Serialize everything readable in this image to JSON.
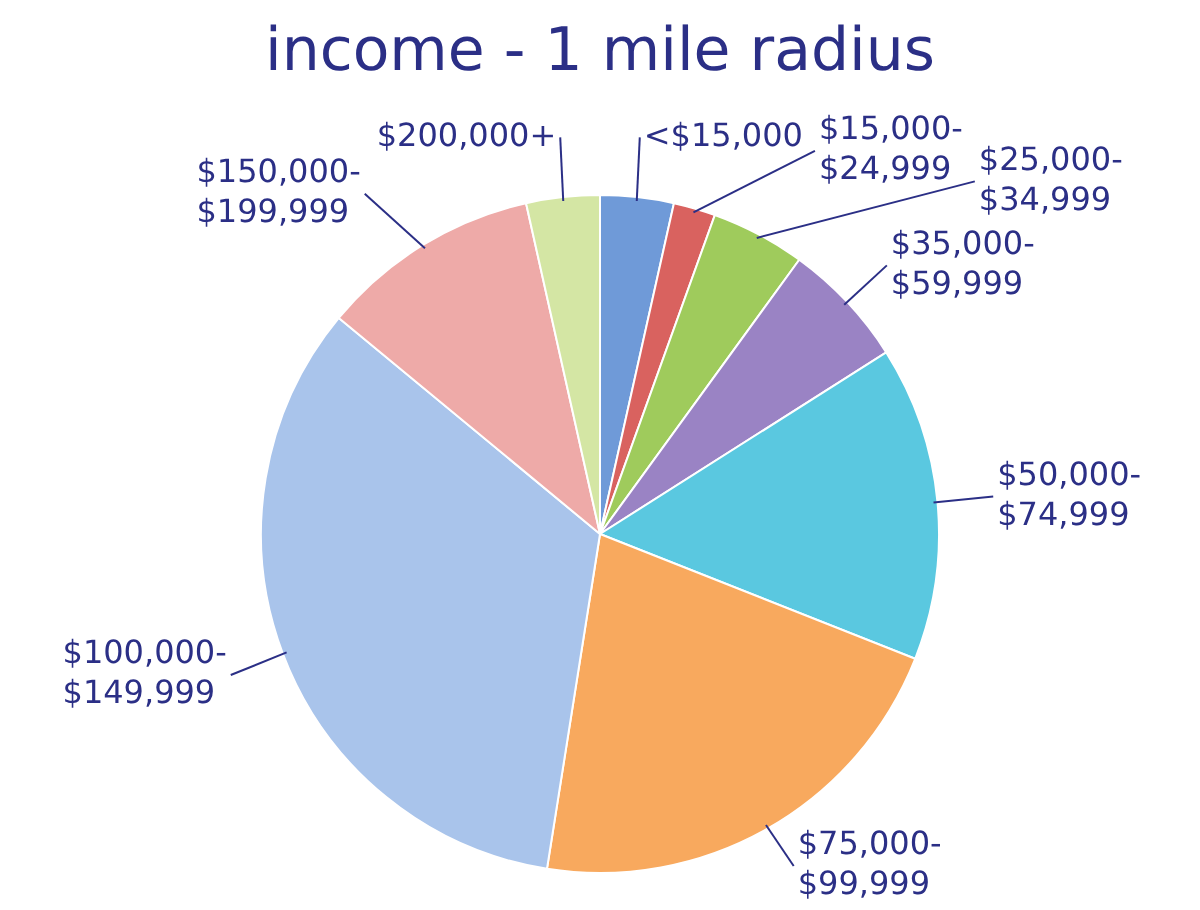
{
  "chart_data": {
    "type": "pie",
    "title": "income - 1 mile radius",
    "categories": [
      "<$15,000",
      "$15,000-$24,999",
      "$25,000-$34,999",
      "$35,000-$59,999",
      "$50,000-$74,999",
      "$75,000-$99,999",
      "$100,000-$149,999",
      "$150,000-$199,999",
      "$200,000+"
    ],
    "values": [
      3.5,
      2,
      4.5,
      6,
      15,
      21.5,
      33.5,
      10.5,
      3.5
    ],
    "colors": [
      "#6f9ad8",
      "#d9625f",
      "#9fcb5c",
      "#9a83c4",
      "#5ac8e0",
      "#f8a95e",
      "#a9c4eb",
      "#eeaaa8",
      "#d4e6a4"
    ],
    "legend": false
  }
}
